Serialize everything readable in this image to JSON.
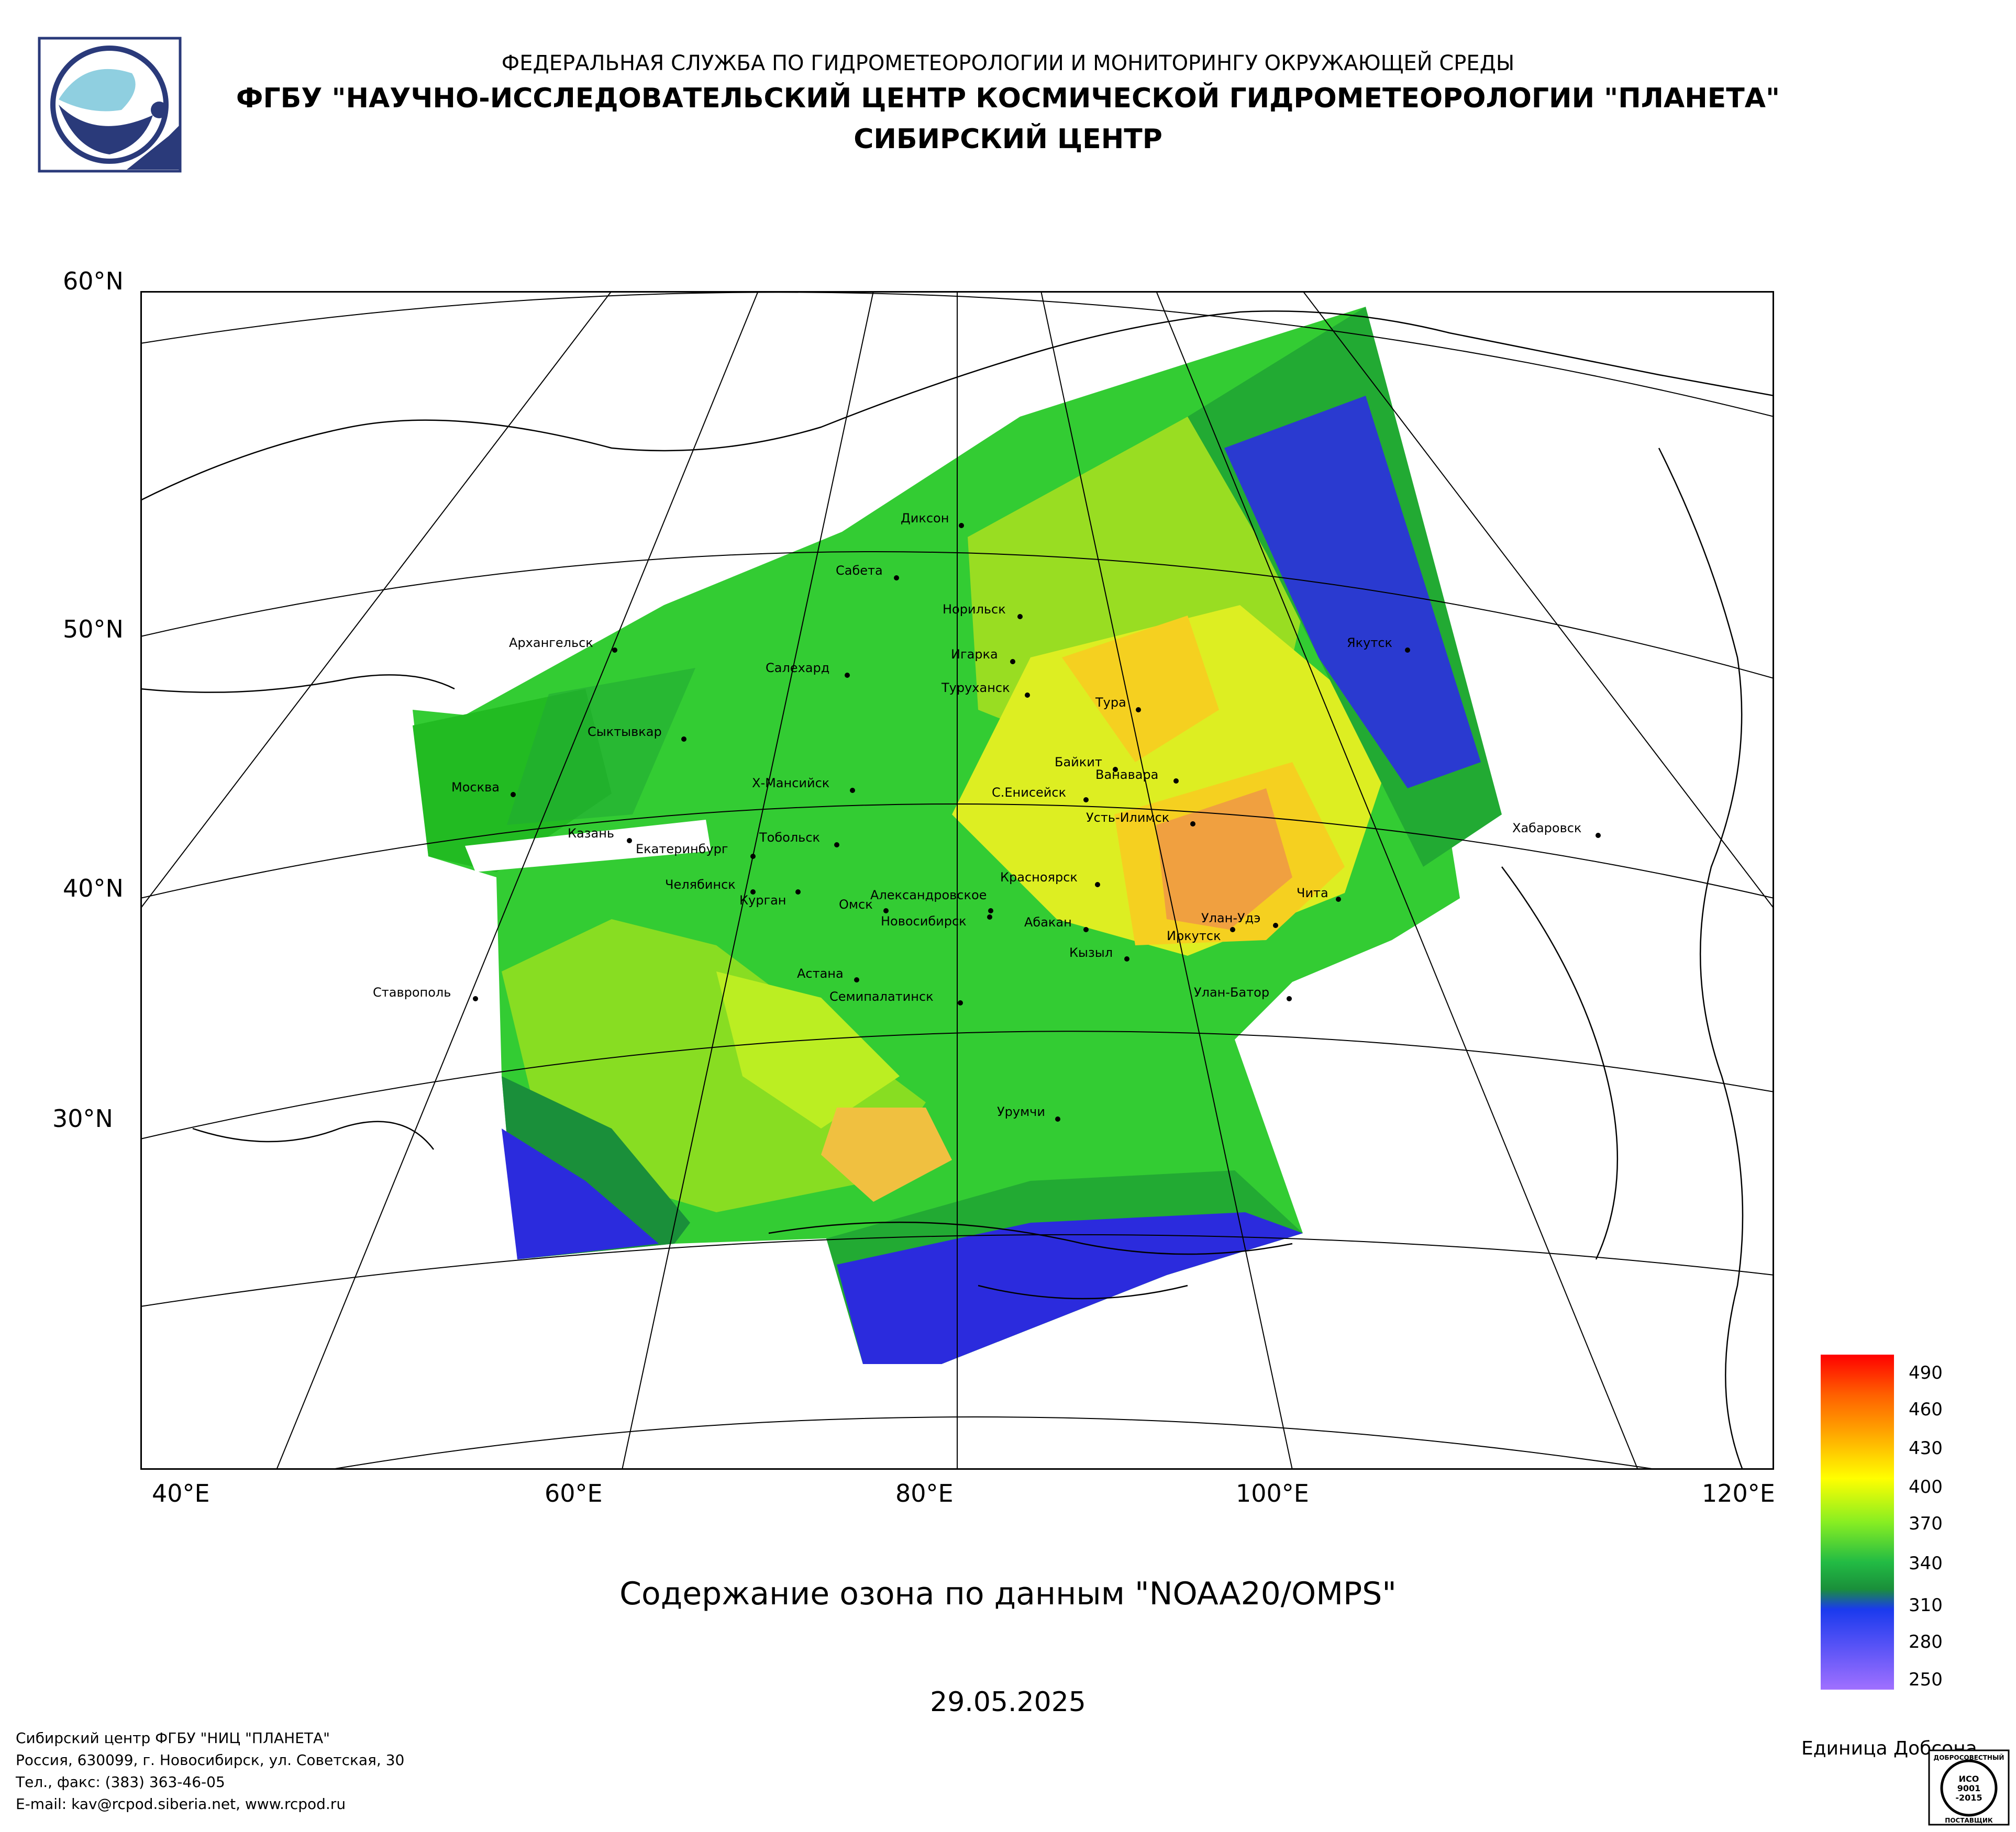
{
  "header": {
    "agency": "ФЕДЕРАЛЬНАЯ СЛУЖБА ПО ГИДРОМЕТЕОРОЛОГИИ И МОНИТОРИНГУ ОКРУЖАЮЩЕЙ СРЕДЫ",
    "institute": "ФГБУ \"НАУЧНО-ИССЛЕДОВАТЕЛЬСКИЙ ЦЕНТР КОСМИЧЕСКОЙ ГИДРОМЕТЕОРОЛОГИИ \"ПЛАНЕТА\"",
    "center": "СИБИРСКИЙ ЦЕНТР"
  },
  "map": {
    "lat_labels": [
      "60°N",
      "50°N",
      "40°N",
      "30°N"
    ],
    "lon_labels": [
      "40°E",
      "60°E",
      "80°E",
      "100°E",
      "120°E"
    ],
    "cities": [
      {
        "name": "Диксон"
      },
      {
        "name": "Сабета"
      },
      {
        "name": "Норильск"
      },
      {
        "name": "Архангельск"
      },
      {
        "name": "Салехард"
      },
      {
        "name": "Игарка"
      },
      {
        "name": "Туруханск"
      },
      {
        "name": "Якутск"
      },
      {
        "name": "Тура"
      },
      {
        "name": "Сыктывкар"
      },
      {
        "name": "Байкит"
      },
      {
        "name": "Ванавара"
      },
      {
        "name": "Х-Мансийск"
      },
      {
        "name": "С.Енисейск"
      },
      {
        "name": "Москва"
      },
      {
        "name": "Усть-Илимск"
      },
      {
        "name": "Хабаровск"
      },
      {
        "name": "Казань"
      },
      {
        "name": "Тобольск"
      },
      {
        "name": "Екатеринбург"
      },
      {
        "name": "Красноярск"
      },
      {
        "name": "Челябинск"
      },
      {
        "name": "Александровское"
      },
      {
        "name": "Чита"
      },
      {
        "name": "Курган"
      },
      {
        "name": "Омск"
      },
      {
        "name": "Новосибирск"
      },
      {
        "name": "Абакан"
      },
      {
        "name": "Улан-Удэ"
      },
      {
        "name": "Иркутск"
      },
      {
        "name": "Кызыл"
      },
      {
        "name": "Астана"
      },
      {
        "name": "Ставрополь"
      },
      {
        "name": "Семипалатинск"
      },
      {
        "name": "Улан-Батор"
      },
      {
        "name": "Урумчи"
      }
    ]
  },
  "caption": "Содержание озона по данным \"NOAA20/OMPS\"",
  "date": "29.05.2025",
  "legend": {
    "ticks": [
      "490",
      "460",
      "430",
      "400",
      "370",
      "340",
      "310",
      "280",
      "250"
    ],
    "unit": "Единица Добсона"
  },
  "footer": {
    "line1": "Сибирский центр ФГБУ \"НИЦ \"ПЛАНЕТА\"",
    "line2": "Россия, 630099, г. Новосибирск, ул. Советская, 30",
    "line3": "Тел., факс: (383) 363-46-05",
    "line4": "E-mail: kav@rcpod.siberia.net, www.rcpod.ru"
  },
  "iso_badge": [
    "ДОБРОСОВЕСТНЫЙ",
    "ИСО",
    "9001",
    "-2015",
    "ПОСТАВЩИК"
  ],
  "colors": {
    "ozone_high": "#ff2a00",
    "ozone_mid": "#ffff00",
    "ozone_green": "#33cc33",
    "ozone_low": "#2b2bdd",
    "logo_blue": "#2a3a7a"
  }
}
